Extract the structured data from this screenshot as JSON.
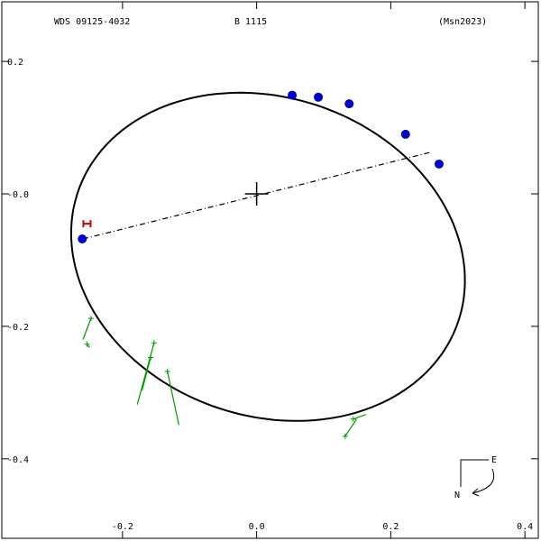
{
  "header": {
    "wds_id": "WDS 09125-4032",
    "discoverer": "B  1115",
    "reference": "(Msn2023)"
  },
  "compass": {
    "east_label": "E",
    "north_label": "N"
  },
  "chart_data": {
    "type": "scatter",
    "title": "",
    "xlabel": "",
    "ylabel": "",
    "xlim": [
      -0.38,
      0.42
    ],
    "ylim": [
      -0.52,
      0.29
    ],
    "x_ticks": [
      -0.2,
      0.0,
      0.2,
      0.4
    ],
    "x_tick_labels": [
      "-0.2",
      "0.0",
      "0.2",
      "0.4"
    ],
    "y_ticks": [
      0.2,
      0.0,
      -0.2,
      -0.4
    ],
    "y_tick_labels": [
      "0.2",
      "-0.0",
      "-0.2",
      "-0.4"
    ],
    "grid": false,
    "orbit_ellipse": {
      "center": [
        0.017,
        -0.095
      ],
      "semi_axes": [
        0.3,
        0.24
      ],
      "rotation_deg": -20
    },
    "primary_star": [
      0.0,
      0.0
    ],
    "line_of_nodes": [
      [
        -0.259,
        -0.068
      ],
      [
        0.26,
        0.063
      ]
    ],
    "series": [
      {
        "marker": "filled-circle",
        "color": "#0000cc",
        "points": [
          [
            -0.26,
            -0.068
          ],
          [
            0.053,
            0.149
          ],
          [
            0.092,
            0.146
          ],
          [
            0.138,
            0.136
          ],
          [
            0.222,
            0.09
          ],
          [
            0.272,
            0.045
          ]
        ]
      },
      {
        "marker": "plus",
        "color": "#009900",
        "points": [
          [
            -0.247,
            -0.188
          ],
          [
            -0.253,
            -0.227
          ],
          [
            -0.153,
            -0.225
          ],
          [
            -0.158,
            -0.247
          ],
          [
            -0.133,
            -0.268
          ],
          [
            0.132,
            -0.366
          ],
          [
            0.144,
            -0.34
          ]
        ],
        "residuals": [
          [
            [
              -0.247,
              -0.188
            ],
            [
              -0.259,
              -0.22
            ]
          ],
          [
            [
              -0.253,
              -0.227
            ],
            [
              -0.249,
              -0.232
            ]
          ],
          [
            [
              -0.153,
              -0.225
            ],
            [
              -0.178,
              -0.318
            ]
          ],
          [
            [
              -0.158,
              -0.247
            ],
            [
              -0.171,
              -0.297
            ]
          ],
          [
            [
              -0.133,
              -0.268
            ],
            [
              -0.116,
              -0.349
            ]
          ],
          [
            [
              0.132,
              -0.366
            ],
            [
              0.149,
              -0.34
            ]
          ],
          [
            [
              0.144,
              -0.34
            ],
            [
              0.163,
              -0.333
            ]
          ]
        ]
      },
      {
        "marker": "H",
        "color": "#cc0000",
        "points": [
          [
            -0.253,
            -0.045
          ]
        ]
      }
    ]
  }
}
